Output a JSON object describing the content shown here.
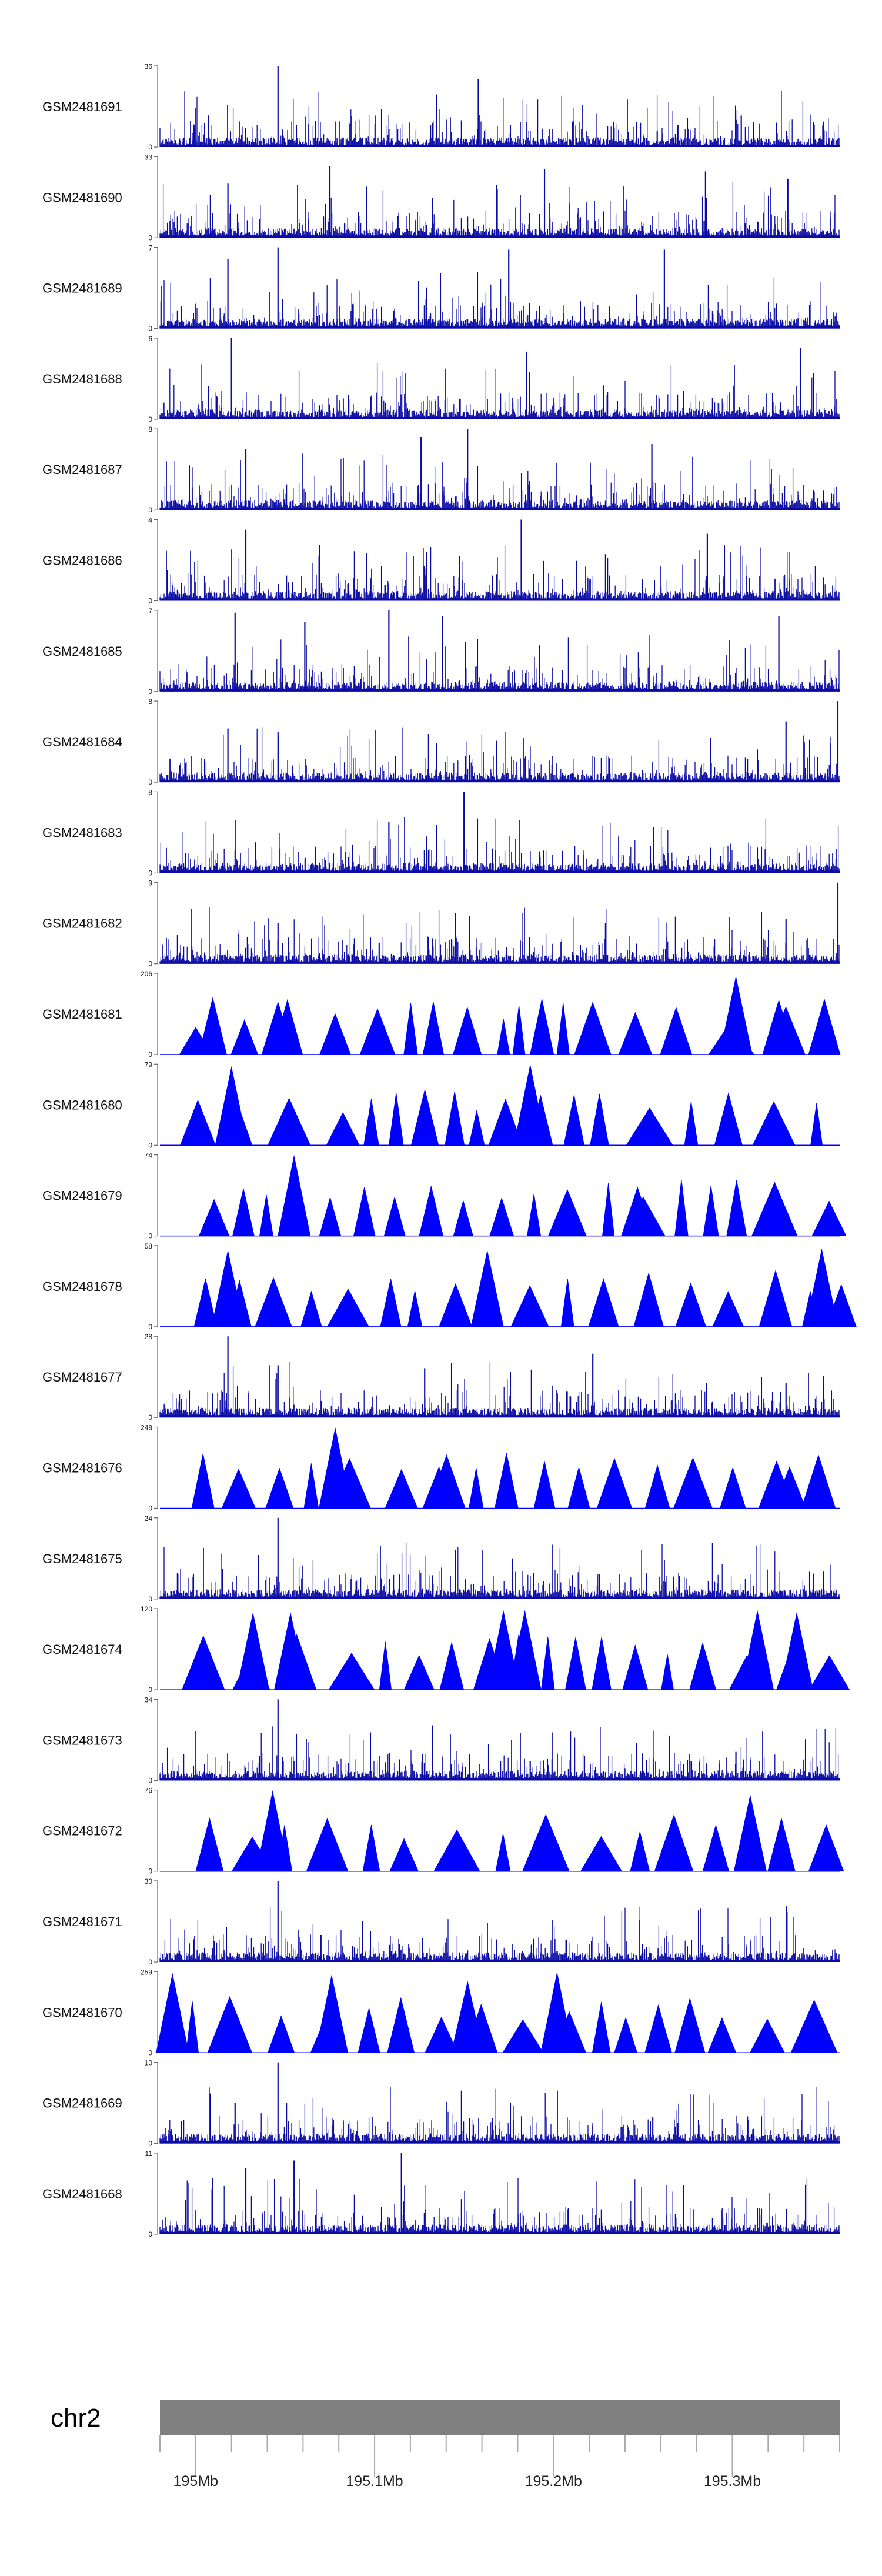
{
  "chart_data": {
    "type": "area",
    "region": {
      "chromosome": "chr2",
      "start_mb": 194.98,
      "end_mb": 195.36
    },
    "axis": {
      "major_ticks_mb": [
        195.0,
        195.1,
        195.2,
        195.3
      ],
      "tick_labels": [
        "195Mb",
        "195.1Mb",
        "195.2Mb",
        "195.3Mb"
      ],
      "minor_tick_step_mb": 0.02
    },
    "colors": {
      "track": "#0a0aa5",
      "sparse": "#0000ff",
      "ideogram": "#808080"
    },
    "tracks": [
      {
        "name": "GSM2481691",
        "ymin": 0,
        "ymax": 36,
        "style": "dense",
        "peaks": [
          [
            195.046,
            36
          ],
          [
            195.158,
            30
          ],
          [
            195.305,
            14
          ],
          [
            194.999,
            10
          ],
          [
            195.108,
            8
          ],
          [
            195.258,
            7
          ]
        ]
      },
      {
        "name": "GSM2481690",
        "ymin": 0,
        "ymax": 33,
        "style": "dense",
        "peaks": [
          [
            195.075,
            29
          ],
          [
            195.195,
            28
          ],
          [
            195.285,
            27
          ],
          [
            195.018,
            22
          ],
          [
            195.331,
            24
          ]
        ]
      },
      {
        "name": "GSM2481689",
        "ymin": 0,
        "ymax": 7,
        "style": "dense",
        "peaks": [
          [
            195.046,
            7
          ],
          [
            195.175,
            6.8
          ],
          [
            195.262,
            6.8
          ],
          [
            195.018,
            6
          ]
        ]
      },
      {
        "name": "GSM2481688",
        "ymin": 0,
        "ymax": 6,
        "style": "dense",
        "peaks": [
          [
            195.02,
            6
          ],
          [
            195.338,
            5.3
          ],
          [
            195.185,
            5
          ]
        ]
      },
      {
        "name": "GSM2481687",
        "ymin": 0,
        "ymax": 8,
        "style": "dense",
        "peaks": [
          [
            195.152,
            8
          ],
          [
            195.126,
            7.2
          ],
          [
            195.028,
            6
          ],
          [
            195.255,
            6.5
          ]
        ]
      },
      {
        "name": "GSM2481686",
        "ymin": 0,
        "ymax": 4,
        "style": "dense",
        "peaks": [
          [
            195.182,
            4
          ],
          [
            195.028,
            3.5
          ],
          [
            195.286,
            3.3
          ]
        ]
      },
      {
        "name": "GSM2481685",
        "ymin": 0,
        "ymax": 7,
        "style": "dense",
        "peaks": [
          [
            195.108,
            7
          ],
          [
            195.138,
            6.5
          ],
          [
            195.022,
            6.8
          ],
          [
            195.326,
            6.5
          ],
          [
            195.061,
            6
          ]
        ]
      },
      {
        "name": "GSM2481684",
        "ymin": 0,
        "ymax": 8,
        "style": "dense",
        "peaks": [
          [
            195.359,
            8
          ],
          [
            195.018,
            5.3
          ],
          [
            195.33,
            6
          ],
          [
            195.046,
            5
          ]
        ]
      },
      {
        "name": "GSM2481683",
        "ymin": 0,
        "ymax": 8,
        "style": "dense",
        "peaks": [
          [
            195.15,
            8
          ],
          [
            195.108,
            5
          ],
          [
            195.256,
            4.5
          ]
        ]
      },
      {
        "name": "GSM2481682",
        "ymin": 0,
        "ymax": 9,
        "style": "dense",
        "peaks": [
          [
            195.359,
            9
          ],
          [
            195.33,
            5
          ],
          [
            195.046,
            4.5
          ]
        ]
      },
      {
        "name": "GSM2481681",
        "ymin": 0,
        "ymax": 206,
        "style": "sparse",
        "peaks": [
          [
            195.302,
            200
          ],
          [
            195.326,
            140
          ],
          [
            195.046,
            135
          ],
          [
            195.0,
            70
          ]
        ]
      },
      {
        "name": "GSM2481680",
        "ymin": 0,
        "ymax": 79,
        "style": "sparse",
        "peaks": [
          [
            195.02,
            77
          ],
          [
            195.187,
            79
          ]
        ]
      },
      {
        "name": "GSM2481679",
        "ymin": 0,
        "ymax": 74,
        "style": "sparse",
        "peaks": [
          [
            195.055,
            74
          ],
          [
            195.247,
            45
          ]
        ]
      },
      {
        "name": "GSM2481678",
        "ymin": 0,
        "ymax": 58,
        "style": "sparse",
        "peaks": [
          [
            195.35,
            56
          ],
          [
            195.018,
            55
          ],
          [
            195.163,
            55
          ]
        ]
      },
      {
        "name": "GSM2481677",
        "ymin": 0,
        "ymax": 28,
        "style": "dense",
        "peaks": [
          [
            195.018,
            28
          ],
          [
            195.222,
            22
          ],
          [
            195.046,
            18
          ],
          [
            195.128,
            17
          ],
          [
            195.33,
            12
          ]
        ]
      },
      {
        "name": "GSM2481676",
        "ymin": 0,
        "ymax": 248,
        "style": "sparse",
        "peaks": [
          [
            195.078,
            248
          ],
          [
            195.078,
            130
          ],
          [
            195.115,
            120
          ],
          [
            195.136,
            128
          ],
          [
            195.332,
            128
          ]
        ]
      },
      {
        "name": "GSM2481675",
        "ymin": 0,
        "ymax": 24,
        "style": "dense",
        "peaks": [
          [
            195.046,
            24
          ],
          [
            195.035,
            13
          ],
          [
            195.177,
            12
          ]
        ]
      },
      {
        "name": "GSM2481674",
        "ymin": 0,
        "ymax": 120,
        "style": "sparse",
        "peaks": [
          [
            195.032,
            115
          ],
          [
            195.053,
            115
          ],
          [
            195.172,
            118
          ],
          [
            195.184,
            118
          ],
          [
            195.314,
            118
          ],
          [
            195.336,
            115
          ]
        ]
      },
      {
        "name": "GSM2481673",
        "ymin": 0,
        "ymax": 34,
        "style": "dense",
        "peaks": [
          [
            195.046,
            34
          ],
          [
            195.302,
            12
          ],
          [
            195.187,
            8
          ]
        ]
      },
      {
        "name": "GSM2481672",
        "ymin": 0,
        "ymax": 76,
        "style": "sparse",
        "peaks": [
          [
            195.043,
            76
          ],
          [
            195.31,
            72
          ]
        ]
      },
      {
        "name": "GSM2481671",
        "ymin": 0,
        "ymax": 30,
        "style": "dense",
        "peaks": [
          [
            195.046,
            30
          ],
          [
            195.07,
            10
          ]
        ]
      },
      {
        "name": "GSM2481670",
        "ymin": 0,
        "ymax": 259,
        "style": "sparse",
        "peaks": [
          [
            194.987,
            255
          ],
          [
            195.076,
            250
          ],
          [
            195.152,
            230
          ],
          [
            195.202,
            259
          ]
        ]
      },
      {
        "name": "GSM2481669",
        "ymin": 0,
        "ymax": 10,
        "style": "dense",
        "peaks": [
          [
            195.046,
            10
          ],
          [
            195.022,
            5
          ]
        ]
      },
      {
        "name": "GSM2481668",
        "ymin": 0,
        "ymax": 11,
        "style": "dense",
        "peaks": [
          [
            195.115,
            11
          ],
          [
            195.055,
            10
          ],
          [
            195.028,
            9
          ]
        ]
      }
    ]
  }
}
